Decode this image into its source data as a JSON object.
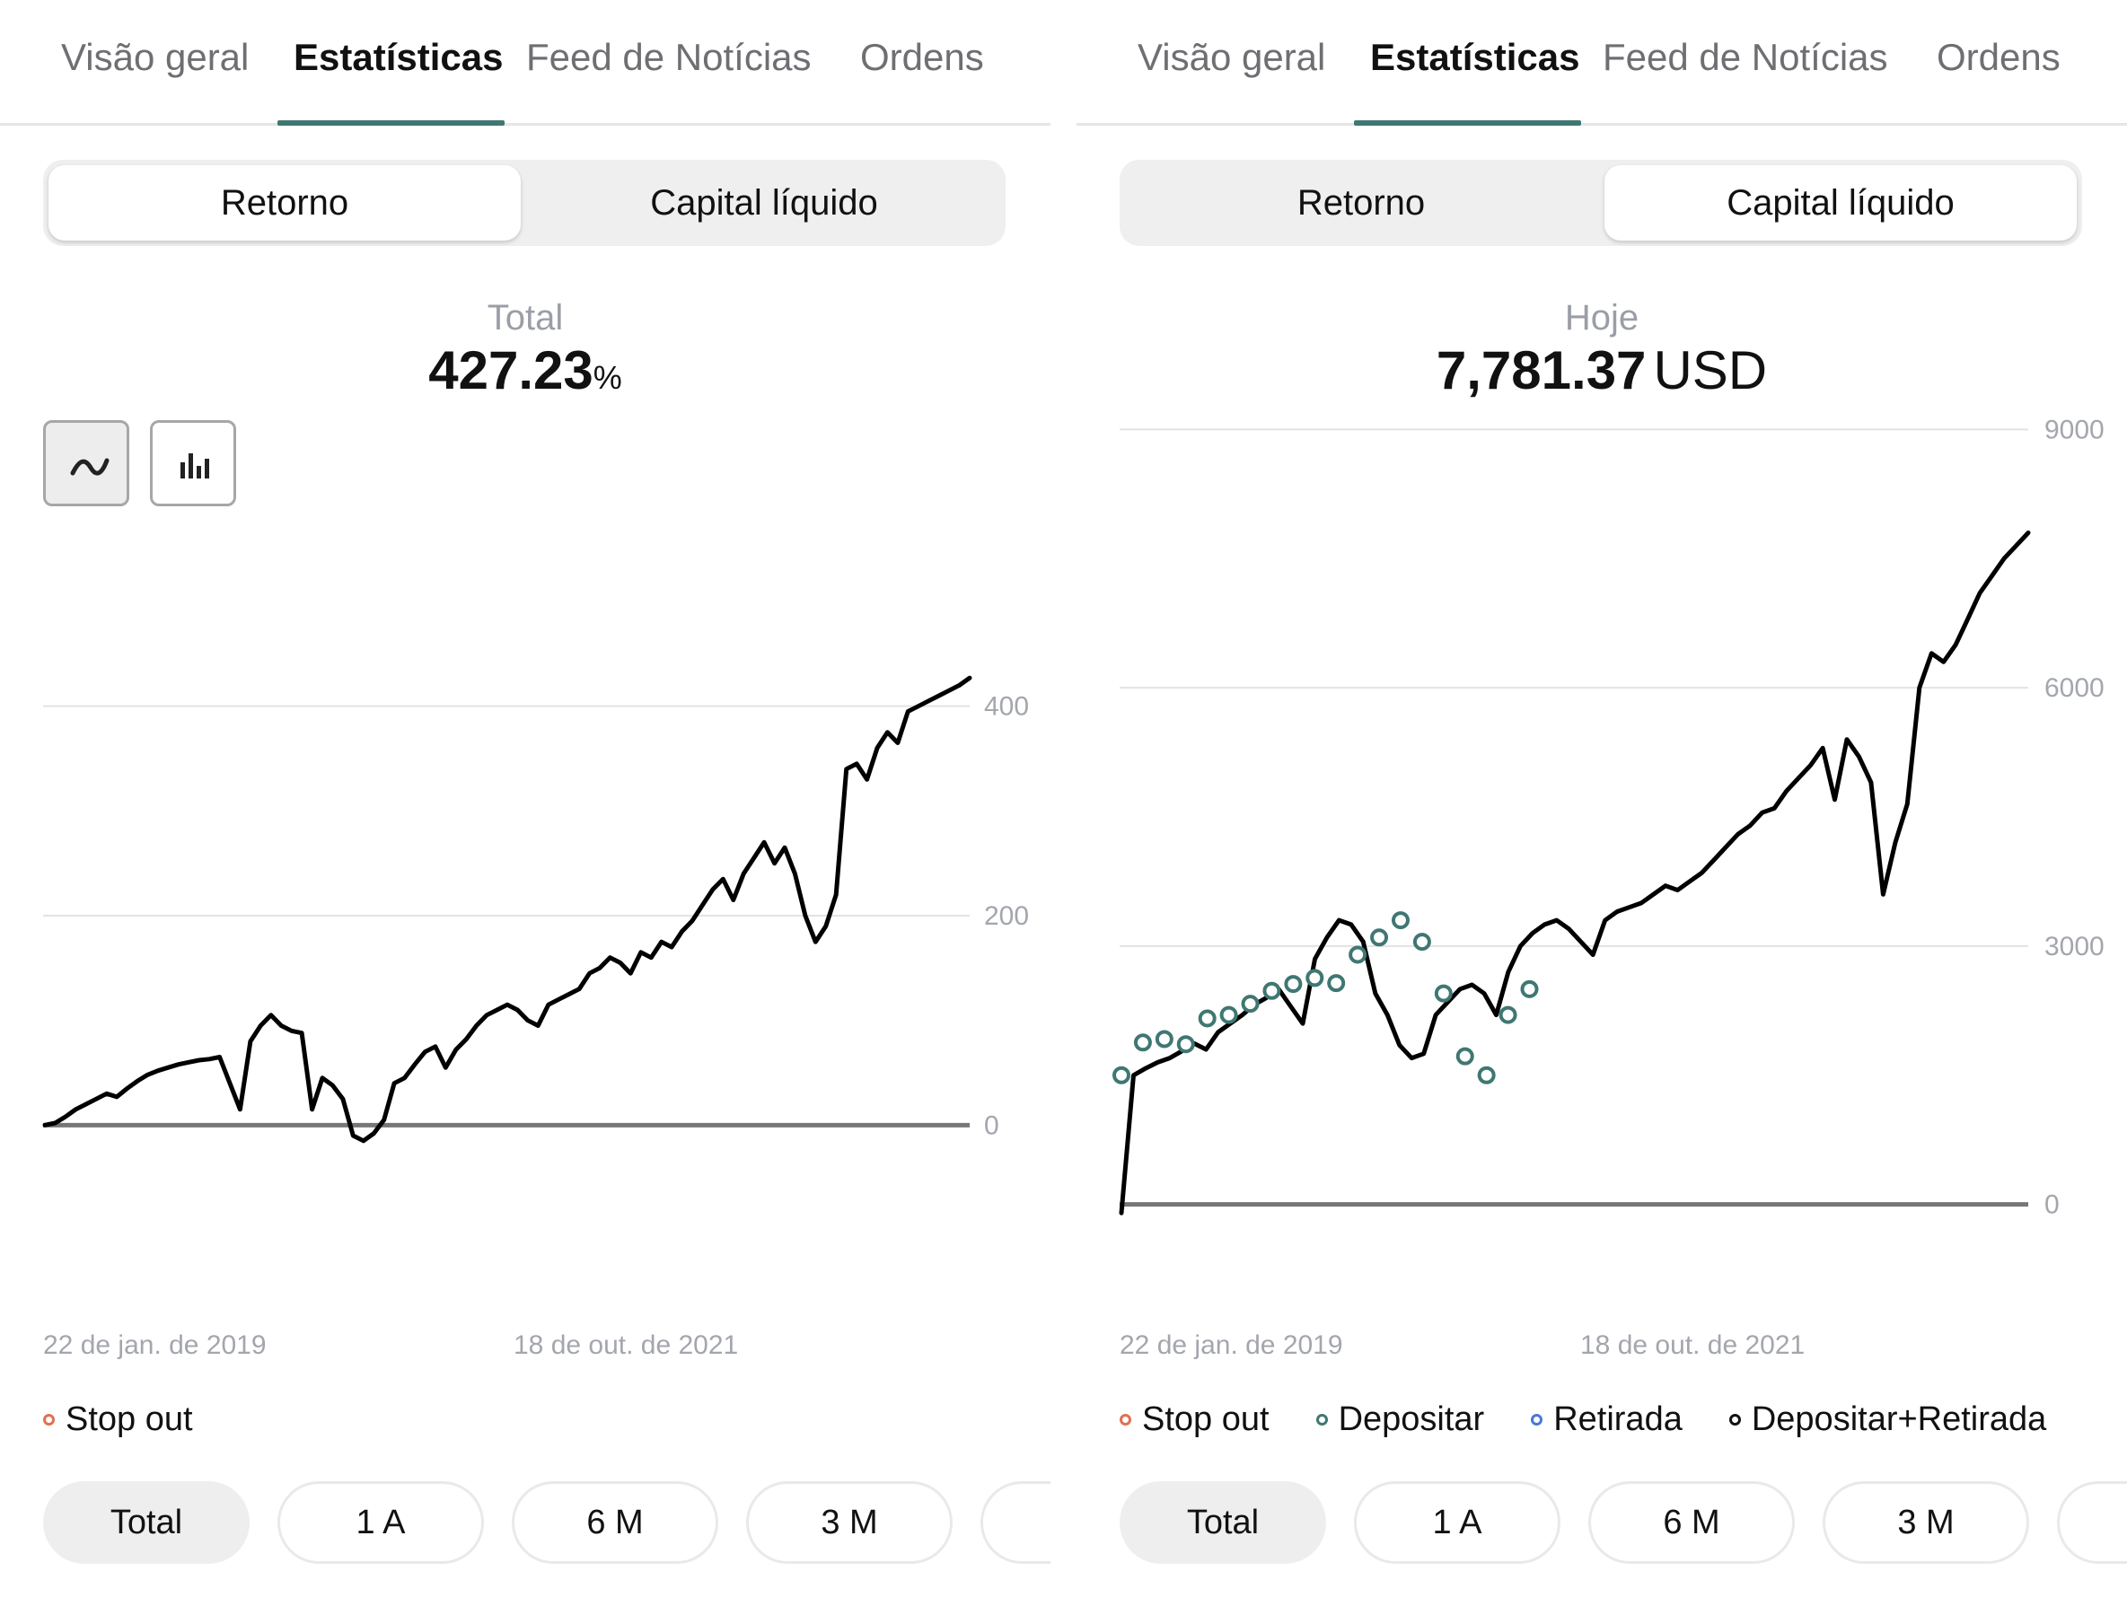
{
  "colors": {
    "accent": "#3f7772",
    "stop_out": "#e07050",
    "deposit": "#3f7772",
    "withdrawal": "#4a78d8",
    "deposit_withdrawal": "#111111",
    "line": "#000000"
  },
  "left": {
    "tabs": [
      "Visão geral",
      "Estatísticas",
      "Feed de Notícias",
      "Ordens"
    ],
    "active_tab": "Estatísticas",
    "segmented": {
      "options": [
        "Retorno",
        "Capital líquido"
      ],
      "selected": "Retorno"
    },
    "summary": {
      "label": "Total",
      "value": "427.23",
      "unit": "%"
    },
    "chart_type_buttons": [
      {
        "icon": "line-chart-icon",
        "active": true
      },
      {
        "icon": "bar-chart-icon",
        "active": false
      }
    ],
    "date_labels": [
      "22 de jan. de 2019",
      "18 de out. de 2021"
    ],
    "legend": [
      {
        "label": "Stop out",
        "color": "#e07050"
      }
    ],
    "periods": [
      "Total",
      "1 A",
      "6 M",
      "3 M"
    ],
    "selected_period": "Total"
  },
  "right": {
    "tabs": [
      "Visão geral",
      "Estatísticas",
      "Feed de Notícias",
      "Ordens"
    ],
    "active_tab": "Estatísticas",
    "segmented": {
      "options": [
        "Retorno",
        "Capital líquido"
      ],
      "selected": "Capital líquido"
    },
    "summary": {
      "label": "Hoje",
      "value": "7,781.37",
      "unit": "USD"
    },
    "date_labels": [
      "22 de jan. de 2019",
      "18 de out. de 2021"
    ],
    "legend": [
      {
        "label": "Stop out",
        "color": "#e07050"
      },
      {
        "label": "Depositar",
        "color": "#3f7772"
      },
      {
        "label": "Retirada",
        "color": "#4a78d8"
      },
      {
        "label": "Depositar+Retirada",
        "color": "#111111"
      }
    ],
    "periods": [
      "Total",
      "1 A",
      "6 M",
      "3 M"
    ],
    "selected_period": "Total"
  },
  "chart_data": [
    {
      "type": "line",
      "ylabel": "",
      "ylim": [
        -40,
        440
      ],
      "yticks": [
        0,
        200,
        400
      ],
      "grid": true,
      "series": [
        {
          "values": [
            0,
            2,
            8,
            15,
            20,
            25,
            30,
            27,
            35,
            42,
            48,
            52,
            55,
            58,
            60,
            62,
            63,
            65,
            40,
            15,
            80,
            95,
            105,
            95,
            90,
            88,
            15,
            45,
            38,
            25,
            -10,
            -15,
            -8,
            5,
            40,
            45,
            58,
            70,
            75,
            55,
            72,
            82,
            95,
            105,
            110,
            115,
            110,
            100,
            95,
            115,
            120,
            125,
            130,
            145,
            150,
            160,
            155,
            145,
            165,
            160,
            175,
            170,
            185,
            195,
            210,
            225,
            235,
            215,
            240,
            255,
            270,
            250,
            265,
            240,
            200,
            175,
            190,
            220,
            340,
            345,
            330,
            360,
            375,
            365,
            395,
            400,
            405,
            410,
            415,
            420,
            427
          ]
        }
      ]
    },
    {
      "type": "line",
      "ylabel": "",
      "ylim": [
        -400,
        9400
      ],
      "yticks": [
        0,
        3000,
        6000,
        9000
      ],
      "grid": true,
      "series": [
        {
          "values": [
            -100,
            1500,
            1580,
            1650,
            1700,
            1780,
            1870,
            1800,
            2000,
            2100,
            2200,
            2320,
            2400,
            2500,
            2300,
            2100,
            2850,
            3100,
            3300,
            3250,
            3050,
            2450,
            2200,
            1850,
            1700,
            1750,
            2200,
            2350,
            2500,
            2550,
            2450,
            2200,
            2700,
            3000,
            3150,
            3250,
            3300,
            3200,
            3050,
            2900,
            3300,
            3400,
            3450,
            3500,
            3600,
            3700,
            3650,
            3750,
            3850,
            4000,
            4150,
            4300,
            4400,
            4550,
            4600,
            4800,
            4950,
            5100,
            5300,
            4700,
            5400,
            5200,
            4900,
            3600,
            4200,
            4650,
            6000,
            6400,
            6300,
            6500,
            6800,
            7100,
            7300,
            7500,
            7650,
            7800
          ]
        }
      ],
      "deposit_markers": [
        1500,
        1880,
        1920,
        1860,
        2160,
        2200,
        2330,
        2480,
        2560,
        2630,
        2570,
        2900,
        3100,
        3300,
        3050,
        2450,
        1720,
        1500,
        2200,
        2500
      ]
    }
  ]
}
